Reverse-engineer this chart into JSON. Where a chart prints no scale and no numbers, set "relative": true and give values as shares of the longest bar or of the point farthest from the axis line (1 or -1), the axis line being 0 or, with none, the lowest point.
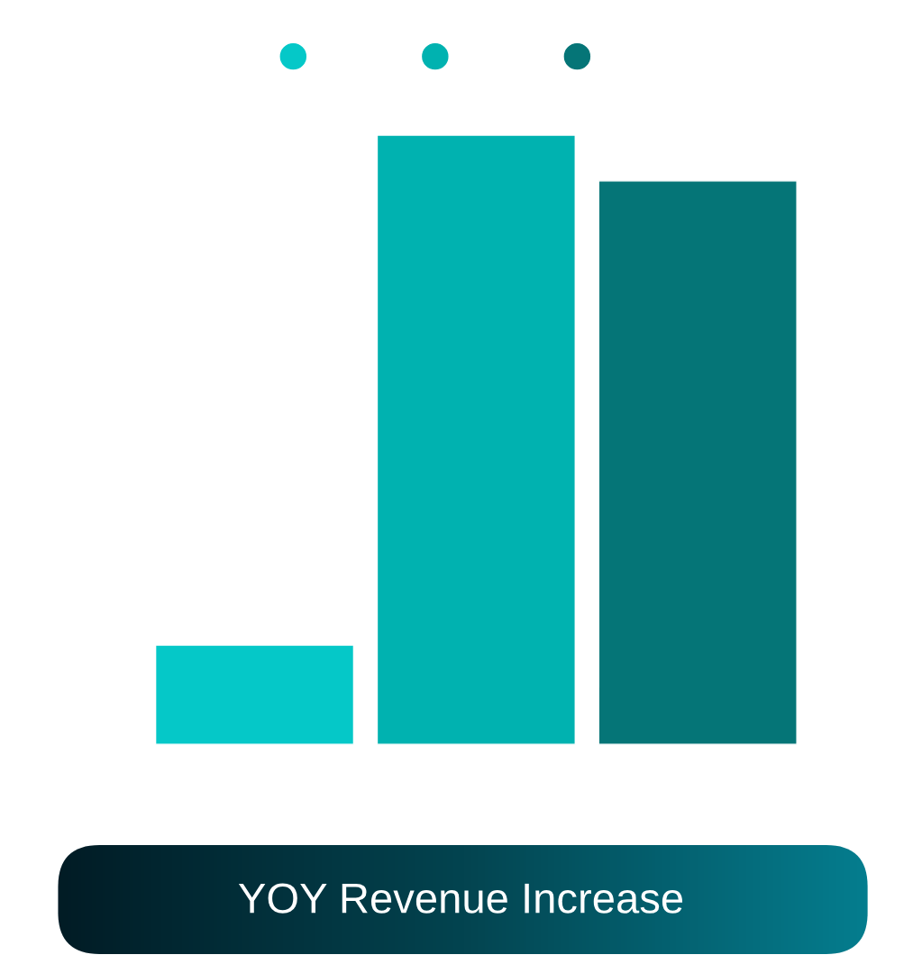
{
  "chart_data": {
    "type": "bar",
    "title": "YOY Revenue Increase",
    "categories": [
      null,
      null,
      null
    ],
    "values": [
      0.163,
      1,
      0.925
    ],
    "colors": [
      "#05c8c8",
      "#00b2b0",
      "#057577"
    ],
    "relative": true,
    "grid": false
  }
}
